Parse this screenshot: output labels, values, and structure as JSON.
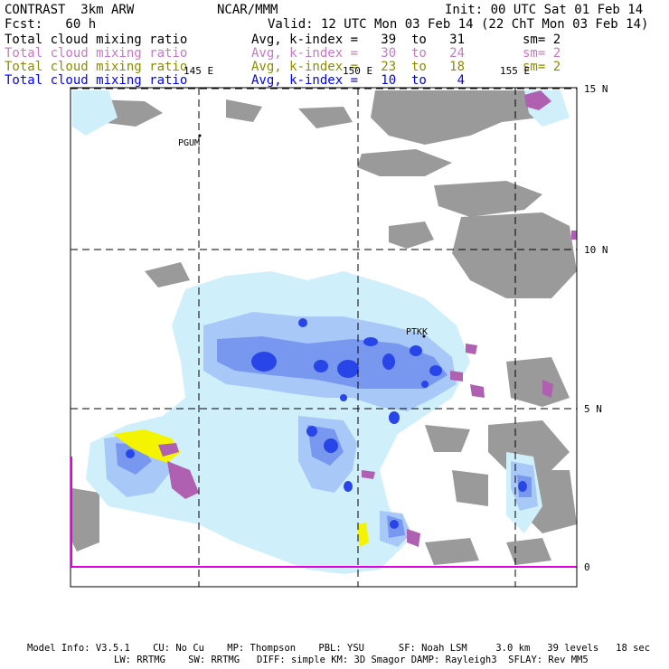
{
  "header": {
    "model": "CONTRAST  3km ARW",
    "org": "NCAR/MMM",
    "init": "Init: 00 UTC Sat 01 Feb 14",
    "fcst": "Fcst:   60 h",
    "valid": "Valid: 12 UTC Mon 03 Feb 14 (22 ChT Mon 03 Feb 14)"
  },
  "legend": [
    {
      "field": "Total cloud mixing ratio",
      "range": "Avg, k-index =   39  to   31",
      "sm": "sm= 2",
      "color": "#000000"
    },
    {
      "field": "Total cloud mixing ratio",
      "range": "Avg, k-index =   30  to   24",
      "sm": "sm= 2",
      "color": "#c878c8"
    },
    {
      "field": "Total cloud mixing ratio",
      "range": "Avg, k-index =   23  to   18",
      "sm": "sm= 2",
      "color": "#8c8c00"
    },
    {
      "field": "Total cloud mixing ratio",
      "range": "Avg, k-index =   10  to    4",
      "sm": "",
      "color": "#0000ff"
    }
  ],
  "map": {
    "lon_labels": [
      "145 E",
      "150 E",
      "155 E"
    ],
    "lat_labels": [
      "15 N",
      "10 N",
      "5 N",
      "0"
    ],
    "stations": [
      "PGUM",
      "PTKK"
    ]
  },
  "footer": {
    "line1": "Model Info: V3.5.1    CU: No Cu    MP: Thompson    PBL: YSU      SF: Noah LSM     3.0 km   39 levels   18 sec",
    "line2": "LW: RRTMG    SW: RRTMG   DIFF: simple KM: 3D Smagor DAMP: Rayleigh3  SFLAY: Rev MM5"
  },
  "colors": {
    "gray_cloud": "#9a9a9a",
    "pale_cyan": "#cfeffb",
    "light_blue": "#a8c8f8",
    "mid_blue": "#7898f0",
    "deep_blue": "#2846e8",
    "magenta": "#b060b0",
    "yellow": "#f4f400",
    "equator": "#e000e0"
  }
}
